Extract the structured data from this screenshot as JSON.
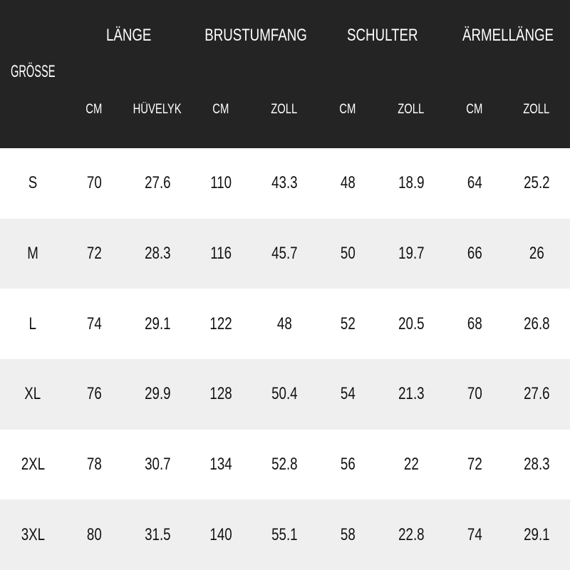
{
  "header": {
    "size_label": "GRÖSSE",
    "groups": [
      "LÄNGE",
      "BRUSTUMFANG",
      "SCHULTER",
      "ÄRMELLÄNGE"
    ],
    "units": [
      "CM",
      "HÜVELYK",
      "CM",
      "ZOLL",
      "CM",
      "ZOLL",
      "CM",
      "ZOLL"
    ]
  },
  "rows": [
    {
      "size": "S",
      "values": [
        "70",
        "27.6",
        "110",
        "43.3",
        "48",
        "18.9",
        "64",
        "25.2"
      ]
    },
    {
      "size": "M",
      "values": [
        "72",
        "28.3",
        "116",
        "45.7",
        "50",
        "19.7",
        "66",
        "26"
      ]
    },
    {
      "size": "L",
      "values": [
        "74",
        "29.1",
        "122",
        "48",
        "52",
        "20.5",
        "68",
        "26.8"
      ]
    },
    {
      "size": "XL",
      "values": [
        "76",
        "29.9",
        "128",
        "50.4",
        "54",
        "21.3",
        "70",
        "27.6"
      ]
    },
    {
      "size": "2XL",
      "values": [
        "78",
        "30.7",
        "134",
        "52.8",
        "56",
        "22",
        "72",
        "28.3"
      ]
    },
    {
      "size": "3XL",
      "values": [
        "80",
        "31.5",
        "140",
        "55.1",
        "58",
        "22.8",
        "74",
        "29.1"
      ]
    }
  ],
  "colors": {
    "header_bg": "#252424",
    "header_text": "#ffffff",
    "alt_row_bg": "#efefef"
  }
}
